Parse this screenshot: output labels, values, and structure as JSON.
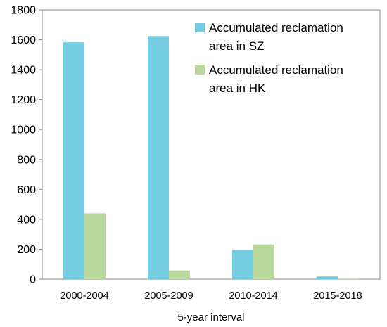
{
  "chart_data": {
    "type": "bar",
    "categories": [
      "2000-2004",
      "2005-2009",
      "2010-2014",
      "2015-2018"
    ],
    "series": [
      {
        "name_lines": [
          "Accumulated reclamation",
          "area in SZ"
        ],
        "color": "#74CDE0",
        "values": [
          1583,
          1625,
          195,
          18
        ]
      },
      {
        "name_lines": [
          "Accumulated reclamation",
          "area in HK"
        ],
        "color": "#B8D89C",
        "values": [
          440,
          58,
          232,
          3
        ]
      }
    ],
    "xlabel": "5-year interval",
    "ylabel": "",
    "ylim": [
      0,
      1800
    ],
    "yticks": [
      0,
      200,
      400,
      600,
      800,
      1000,
      1200,
      1400,
      1600,
      1800
    ],
    "grid": false,
    "legend_position": "top-right"
  }
}
